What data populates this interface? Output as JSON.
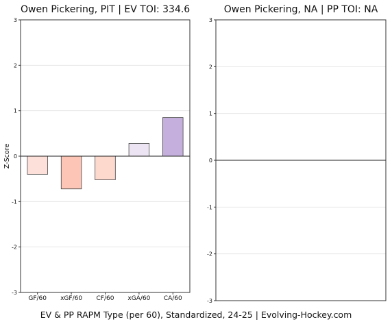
{
  "chart_data": [
    {
      "type": "bar",
      "title": "Owen Pickering, PIT  |  EV TOI: 334.6",
      "ylabel": "Z-Score",
      "categories": [
        "GF/60",
        "xGF/60",
        "CF/60",
        "xGA/60",
        "CA/60"
      ],
      "values": [
        -0.4,
        -0.72,
        -0.52,
        0.28,
        0.85
      ],
      "colors": [
        "#fde0d9",
        "#fcc5b6",
        "#fdd8cd",
        "#ece4f3",
        "#c5b0dd"
      ],
      "ylim": [
        -3,
        3
      ],
      "yticks": [
        3,
        2,
        1,
        0,
        -1,
        -2,
        -3
      ],
      "ytick_labels": [
        "3",
        "2",
        "1",
        "0",
        "-1",
        "-2",
        "-3"
      ],
      "grid": true
    },
    {
      "type": "bar",
      "title": "Owen Pickering, NA  |  PP TOI: NA",
      "ylabel": "",
      "categories": [],
      "values": [],
      "ylim": [
        -3,
        3
      ],
      "yticks": [
        3,
        2,
        1,
        0,
        -1,
        -2,
        -3
      ],
      "ytick_labels": [
        "3",
        "2",
        "1",
        "0",
        "-1",
        "-2",
        "-3"
      ],
      "grid": true
    }
  ],
  "footer": "EV & PP RAPM Type (per 60), Standardized, 24-25    |    Evolving-Hockey.com",
  "colors": {
    "axis": "#333333",
    "grid": "#e6e6e6",
    "zero_line": "#222222",
    "bar_edge": "#444444"
  }
}
